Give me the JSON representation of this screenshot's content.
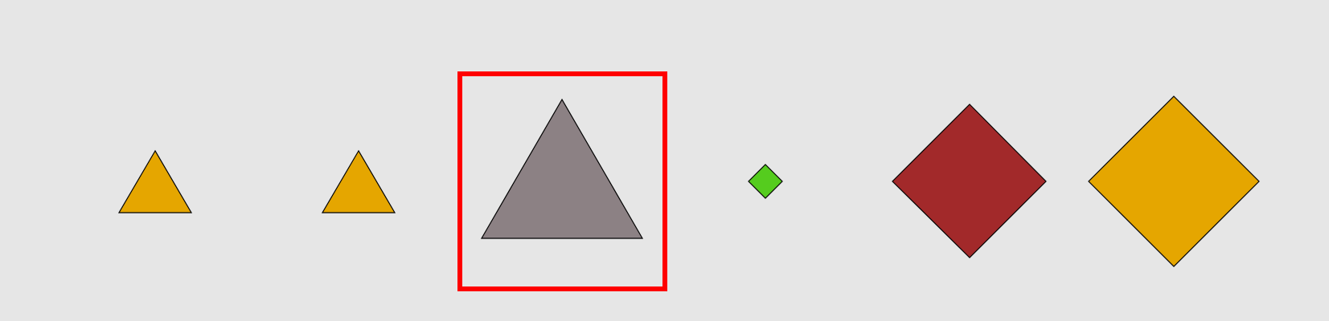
{
  "background_color": "#e6e6e6",
  "shapes": [
    {
      "type": "triangle",
      "fill": "#e5a600"
    },
    {
      "type": "triangle",
      "fill": "#e5a600"
    },
    {
      "type": "triangle",
      "fill": "#8c8184",
      "highlighted": true
    },
    {
      "type": "diamond",
      "fill": "#55cc1e"
    },
    {
      "type": "diamond",
      "fill": "#a2292a"
    },
    {
      "type": "diamond",
      "fill": "#e5a600"
    }
  ],
  "highlight_color": "#ff0000",
  "outline_color": "#000000"
}
